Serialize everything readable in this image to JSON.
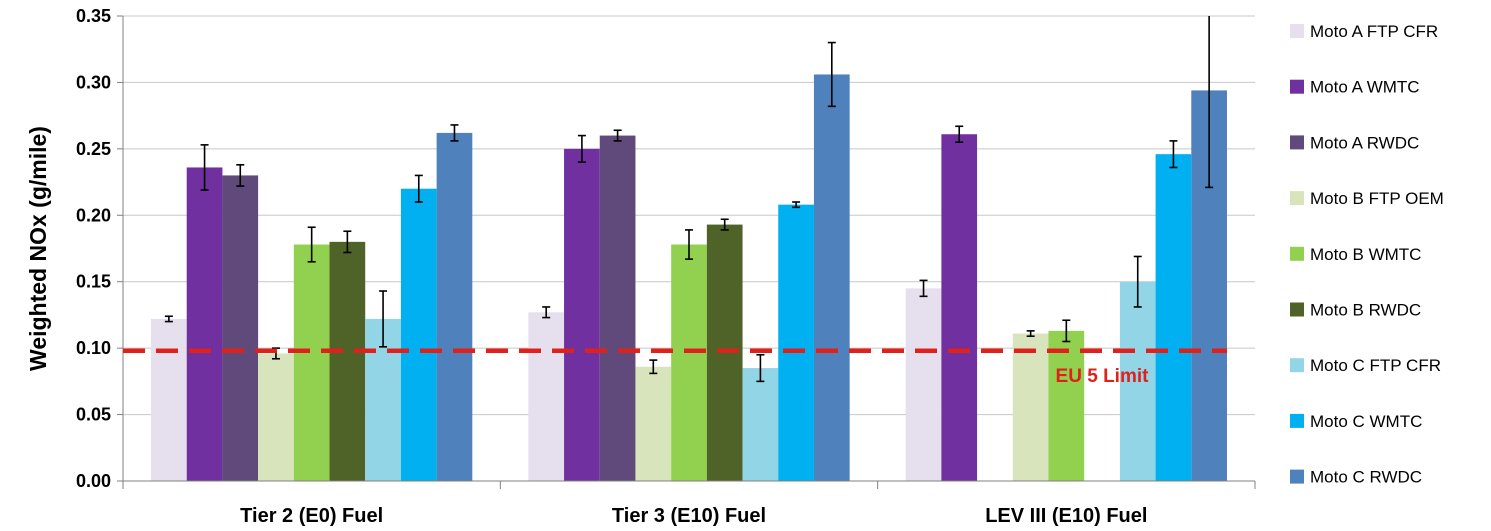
{
  "chart_data": {
    "type": "bar",
    "ylabel": "Weighted NOx  (g/mile)",
    "ylim": [
      0,
      0.35
    ],
    "yticks": [
      "0.00",
      "0.05",
      "0.10",
      "0.15",
      "0.20",
      "0.25",
      "0.30",
      "0.35"
    ],
    "grid": true,
    "legend_position": "right",
    "categories": [
      "Tier 2 (E0) Fuel",
      "Tier 3 (E10) Fuel",
      "LEV III (E10) Fuel"
    ],
    "series": [
      {
        "name": "Moto A FTP CFR",
        "color": "#e6e0ee",
        "values": [
          0.122,
          0.127,
          0.145
        ],
        "errors": [
          0.002,
          0.004,
          0.006
        ]
      },
      {
        "name": "Moto A WMTC",
        "color": "#7030a0",
        "values": [
          0.236,
          0.25,
          0.261
        ],
        "errors": [
          0.017,
          0.01,
          0.006
        ]
      },
      {
        "name": "Moto A RWDC",
        "color": "#604a7b",
        "values": [
          0.23,
          0.26,
          null
        ],
        "errors": [
          0.008,
          0.004,
          null
        ]
      },
      {
        "name": "Moto B FTP OEM",
        "color": "#d8e4bc",
        "values": [
          0.096,
          0.086,
          0.111
        ],
        "errors": [
          0.004,
          0.005,
          0.002
        ]
      },
      {
        "name": "Moto B WMTC",
        "color": "#92d050",
        "values": [
          0.178,
          0.178,
          0.113
        ],
        "errors": [
          0.013,
          0.011,
          0.008
        ]
      },
      {
        "name": "Moto B RWDC",
        "color": "#4f6228",
        "values": [
          0.18,
          0.193,
          null
        ],
        "errors": [
          0.008,
          0.004,
          null
        ]
      },
      {
        "name": "Moto C FTP CFR",
        "color": "#92d5e6",
        "values": [
          0.122,
          0.085,
          0.15
        ],
        "errors": [
          0.021,
          0.01,
          0.019
        ]
      },
      {
        "name": "Moto C WMTC",
        "color": "#00b0f0",
        "values": [
          0.22,
          0.208,
          0.246
        ],
        "errors": [
          0.01,
          0.002,
          0.01
        ]
      },
      {
        "name": "Moto C RWDC",
        "color": "#4f81bd",
        "values": [
          0.262,
          0.306,
          0.294
        ],
        "errors": [
          0.006,
          0.024,
          0.073
        ]
      }
    ],
    "reference_line": {
      "value": 0.098,
      "color": "#e0201b",
      "style": "dashed",
      "label": "EU 5 Limit"
    }
  }
}
